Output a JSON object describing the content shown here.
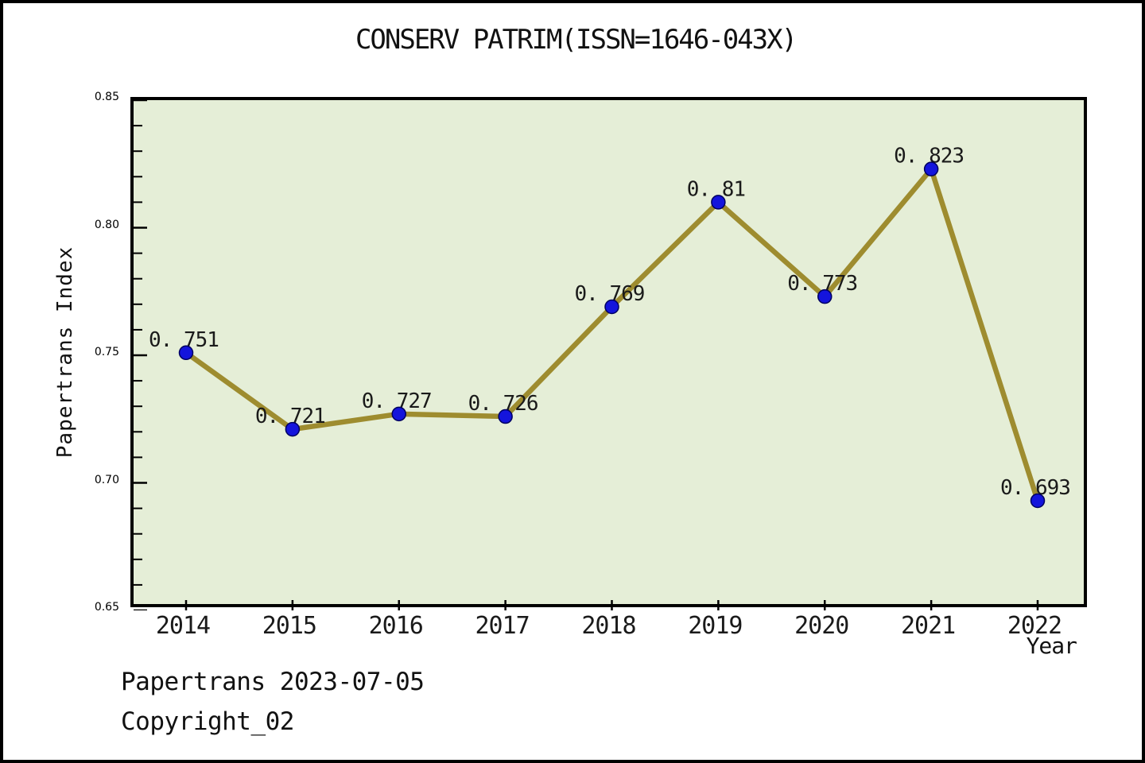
{
  "chart_data": {
    "type": "line",
    "title": "CONSERV PATRIM(ISSN=1646-043X)",
    "xlabel": "Year",
    "ylabel": "Papertrans Index",
    "categories": [
      "2014",
      "2015",
      "2016",
      "2017",
      "2018",
      "2019",
      "2020",
      "2021",
      "2022"
    ],
    "values": [
      0.751,
      0.721,
      0.727,
      0.726,
      0.769,
      0.81,
      0.773,
      0.823,
      0.693
    ],
    "point_labels": [
      "0. 751",
      "0. 721",
      "0. 727",
      "0. 726",
      "0. 769",
      "0. 81",
      "0. 773",
      "0. 823",
      "0. 693"
    ],
    "ylim": [
      0.65,
      0.85
    ],
    "ytick_major": [
      0.65,
      0.7,
      0.75,
      0.8,
      0.85
    ],
    "ytick_labels": [
      "0.65",
      "0.70",
      "0.75",
      "0.80",
      "0.85"
    ],
    "ytick_minor_step": 0.01,
    "grid": false,
    "legend": null,
    "colors": {
      "line": "#9e8c2f",
      "marker": "#1414dc",
      "marker_edge": "#000060",
      "plot_bg": "#e5eed7",
      "axis": "#000000",
      "label_text": "#1a1a1a"
    }
  },
  "footer": {
    "line1": "Papertrans 2023-07-05",
    "line2": "Copyright_02"
  }
}
